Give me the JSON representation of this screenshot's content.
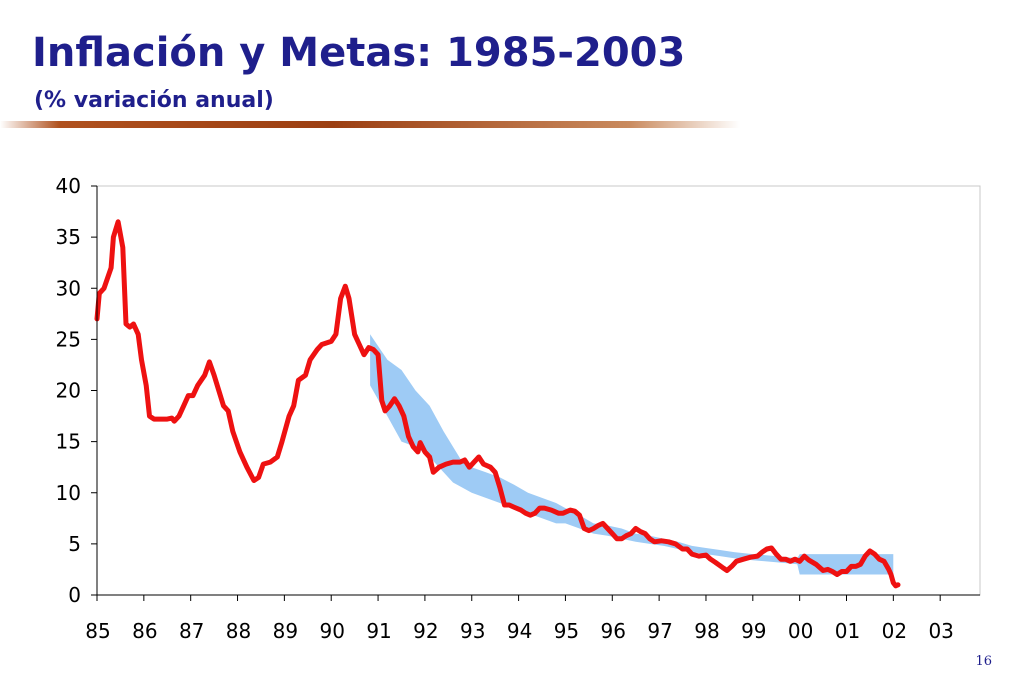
{
  "slide": {
    "title": "Inflación y Metas: 1985-2003",
    "subtitle": "(% variación anual)",
    "page_number": "16"
  },
  "colors": {
    "title": "#1f1f8c",
    "inflation_line": "#ee1111",
    "target_band": "#9ecbf5"
  },
  "chart_data": {
    "type": "line",
    "title": "",
    "xlabel": "",
    "ylabel": "",
    "ylim": [
      0,
      40
    ],
    "yticks": [
      0,
      5,
      10,
      15,
      20,
      25,
      30,
      35,
      40
    ],
    "xlim": [
      1985,
      2003.85
    ],
    "xtick_labels": [
      "85",
      "86",
      "87",
      "88",
      "89",
      "90",
      "91",
      "92",
      "93",
      "94",
      "95",
      "96",
      "97",
      "98",
      "99",
      "00",
      "01",
      "02",
      "03"
    ],
    "grid": false,
    "legend": "none",
    "series": [
      {
        "type": "line",
        "color": "#ee1111",
        "points": [
          [
            1985.0,
            27
          ],
          [
            1985.05,
            29.5
          ],
          [
            1985.15,
            30
          ],
          [
            1985.3,
            32
          ],
          [
            1985.35,
            35
          ],
          [
            1985.45,
            36.5
          ],
          [
            1985.55,
            34
          ],
          [
            1985.62,
            26.5
          ],
          [
            1985.7,
            26.2
          ],
          [
            1985.78,
            26.5
          ],
          [
            1985.88,
            25.5
          ],
          [
            1985.95,
            23
          ],
          [
            1986.05,
            20.5
          ],
          [
            1986.12,
            17.5
          ],
          [
            1986.22,
            17.2
          ],
          [
            1986.35,
            17.2
          ],
          [
            1986.5,
            17.2
          ],
          [
            1986.6,
            17.3
          ],
          [
            1986.65,
            17.0
          ],
          [
            1986.75,
            17.5
          ],
          [
            1986.85,
            18.5
          ],
          [
            1986.95,
            19.5
          ],
          [
            1987.05,
            19.5
          ],
          [
            1987.15,
            20.5
          ],
          [
            1987.3,
            21.5
          ],
          [
            1987.4,
            22.8
          ],
          [
            1987.5,
            21.5
          ],
          [
            1987.6,
            20.0
          ],
          [
            1987.7,
            18.5
          ],
          [
            1987.8,
            18.0
          ],
          [
            1987.9,
            16.0
          ],
          [
            1988.05,
            14.0
          ],
          [
            1988.2,
            12.5
          ],
          [
            1988.35,
            11.2
          ],
          [
            1988.45,
            11.5
          ],
          [
            1988.55,
            12.8
          ],
          [
            1988.7,
            13.0
          ],
          [
            1988.85,
            13.5
          ],
          [
            1988.95,
            15.0
          ],
          [
            1989.1,
            17.5
          ],
          [
            1989.2,
            18.5
          ],
          [
            1989.3,
            21.0
          ],
          [
            1989.45,
            21.5
          ],
          [
            1989.55,
            23.0
          ],
          [
            1989.7,
            24.0
          ],
          [
            1989.8,
            24.5
          ],
          [
            1990.0,
            24.8
          ],
          [
            1990.1,
            25.5
          ],
          [
            1990.2,
            29.0
          ],
          [
            1990.3,
            30.2
          ],
          [
            1990.38,
            29.0
          ],
          [
            1990.5,
            25.5
          ],
          [
            1990.6,
            24.5
          ],
          [
            1990.7,
            23.5
          ],
          [
            1990.8,
            24.2
          ],
          [
            1990.9,
            24.0
          ],
          [
            1991.0,
            23.5
          ],
          [
            1991.08,
            19.0
          ],
          [
            1991.15,
            18.0
          ],
          [
            1991.25,
            18.5
          ],
          [
            1991.35,
            19.2
          ],
          [
            1991.45,
            18.5
          ],
          [
            1991.55,
            17.5
          ],
          [
            1991.65,
            15.5
          ],
          [
            1991.75,
            14.5
          ],
          [
            1991.85,
            14.0
          ],
          [
            1991.9,
            14.9
          ],
          [
            1992.0,
            14.0
          ],
          [
            1992.1,
            13.5
          ],
          [
            1992.18,
            12.0
          ],
          [
            1992.3,
            12.5
          ],
          [
            1992.45,
            12.8
          ],
          [
            1992.6,
            13.0
          ],
          [
            1992.75,
            13.0
          ],
          [
            1992.85,
            13.2
          ],
          [
            1992.95,
            12.5
          ],
          [
            1993.05,
            13.0
          ],
          [
            1993.15,
            13.5
          ],
          [
            1993.25,
            12.8
          ],
          [
            1993.4,
            12.5
          ],
          [
            1993.5,
            12.0
          ],
          [
            1993.6,
            10.5
          ],
          [
            1993.7,
            8.8
          ],
          [
            1993.8,
            8.8
          ],
          [
            1993.9,
            8.6
          ],
          [
            1994.05,
            8.3
          ],
          [
            1994.15,
            8.0
          ],
          [
            1994.25,
            7.8
          ],
          [
            1994.35,
            8.0
          ],
          [
            1994.45,
            8.5
          ],
          [
            1994.55,
            8.5
          ],
          [
            1994.7,
            8.3
          ],
          [
            1994.85,
            8.0
          ],
          [
            1994.95,
            8.0
          ],
          [
            1995.1,
            8.3
          ],
          [
            1995.2,
            8.2
          ],
          [
            1995.3,
            7.8
          ],
          [
            1995.4,
            6.5
          ],
          [
            1995.5,
            6.3
          ],
          [
            1995.6,
            6.5
          ],
          [
            1995.7,
            6.8
          ],
          [
            1995.8,
            7.0
          ],
          [
            1995.9,
            6.5
          ],
          [
            1996.0,
            6.0
          ],
          [
            1996.1,
            5.5
          ],
          [
            1996.2,
            5.5
          ],
          [
            1996.3,
            5.8
          ],
          [
            1996.4,
            6.0
          ],
          [
            1996.5,
            6.5
          ],
          [
            1996.6,
            6.2
          ],
          [
            1996.7,
            6.0
          ],
          [
            1996.8,
            5.5
          ],
          [
            1996.9,
            5.2
          ],
          [
            1997.05,
            5.3
          ],
          [
            1997.2,
            5.2
          ],
          [
            1997.35,
            5.0
          ],
          [
            1997.5,
            4.5
          ],
          [
            1997.6,
            4.5
          ],
          [
            1997.7,
            4.0
          ],
          [
            1997.85,
            3.8
          ],
          [
            1998.0,
            3.9
          ],
          [
            1998.1,
            3.5
          ],
          [
            1998.2,
            3.2
          ],
          [
            1998.35,
            2.7
          ],
          [
            1998.45,
            2.4
          ],
          [
            1998.55,
            2.8
          ],
          [
            1998.65,
            3.3
          ],
          [
            1998.8,
            3.5
          ],
          [
            1998.95,
            3.7
          ],
          [
            1999.1,
            3.8
          ],
          [
            1999.2,
            4.2
          ],
          [
            1999.3,
            4.5
          ],
          [
            1999.4,
            4.6
          ],
          [
            1999.5,
            4.0
          ],
          [
            1999.6,
            3.5
          ],
          [
            1999.7,
            3.5
          ],
          [
            1999.8,
            3.3
          ],
          [
            1999.9,
            3.5
          ],
          [
            2000.0,
            3.3
          ],
          [
            2000.1,
            3.8
          ],
          [
            2000.2,
            3.4
          ],
          [
            2000.35,
            3.0
          ],
          [
            2000.5,
            2.4
          ],
          [
            2000.6,
            2.5
          ],
          [
            2000.7,
            2.3
          ],
          [
            2000.8,
            2.0
          ],
          [
            2000.9,
            2.3
          ],
          [
            2001.0,
            2.3
          ],
          [
            2001.1,
            2.8
          ],
          [
            2001.2,
            2.8
          ],
          [
            2001.3,
            3.0
          ],
          [
            2001.4,
            3.8
          ],
          [
            2001.5,
            4.3
          ],
          [
            2001.6,
            4.0
          ],
          [
            2001.7,
            3.5
          ],
          [
            2001.8,
            3.3
          ],
          [
            2001.9,
            2.5
          ],
          [
            2001.95,
            2.0
          ],
          [
            2002.0,
            1.2
          ],
          [
            2002.05,
            0.9
          ],
          [
            2002.1,
            1.0
          ]
        ]
      },
      {
        "type": "band",
        "color": "#9ecbf5",
        "points": [
          [
            1990.83,
            20.5,
            25.5
          ],
          [
            1991.2,
            17.5,
            23.0
          ],
          [
            1991.5,
            15.0,
            22.0
          ],
          [
            1991.8,
            14.5,
            20.0
          ],
          [
            1992.1,
            13.5,
            18.5
          ],
          [
            1992.4,
            12.0,
            16.0
          ],
          [
            1992.6,
            11.0,
            14.5
          ],
          [
            1992.8,
            10.5,
            13.0
          ],
          [
            1993.0,
            10.0,
            12.5
          ],
          [
            1993.3,
            9.5,
            12.0
          ],
          [
            1993.6,
            9.0,
            11.5
          ],
          [
            1993.9,
            8.5,
            10.8
          ],
          [
            1994.2,
            8.0,
            10.0
          ],
          [
            1994.5,
            7.5,
            9.5
          ],
          [
            1994.8,
            7.0,
            9.0
          ],
          [
            1995.0,
            7.0,
            8.5
          ],
          [
            1995.3,
            6.5,
            7.8
          ],
          [
            1995.6,
            6.0,
            7.0
          ],
          [
            1995.9,
            5.8,
            6.8
          ],
          [
            1996.2,
            5.5,
            6.5
          ],
          [
            1996.5,
            5.2,
            6.0
          ],
          [
            1996.8,
            5.0,
            5.8
          ],
          [
            1997.1,
            4.8,
            5.5
          ],
          [
            1997.4,
            4.5,
            5.2
          ],
          [
            1997.7,
            4.2,
            4.8
          ],
          [
            1998.0,
            4.0,
            4.6
          ],
          [
            1998.3,
            3.8,
            4.4
          ],
          [
            1998.6,
            3.6,
            4.2
          ],
          [
            1999.0,
            3.4,
            4.0
          ],
          [
            1999.5,
            3.2,
            3.8
          ],
          [
            1999.95,
            3.0,
            3.6
          ],
          [
            2000.0,
            2.0,
            4.0
          ],
          [
            2002.0,
            2.0,
            4.0
          ]
        ]
      }
    ]
  }
}
